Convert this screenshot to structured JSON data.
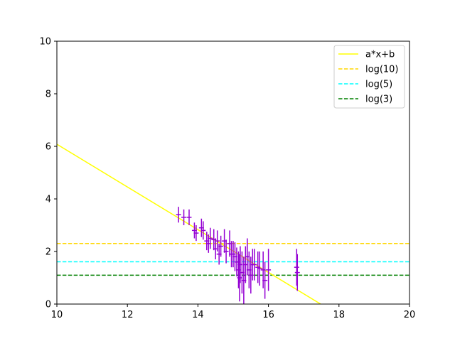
{
  "chart_data": {
    "type": "scatter",
    "title": "",
    "xlabel": "",
    "ylabel": "",
    "xlim": [
      10,
      20
    ],
    "ylim": [
      0,
      10
    ],
    "grid": false,
    "legend_position": "top-right",
    "xticks": [
      "10",
      "12",
      "14",
      "16",
      "18",
      "20"
    ],
    "yticks": [
      "0",
      "2",
      "4",
      "6",
      "8",
      "10"
    ],
    "fit_line": {
      "name": "a*x+b",
      "color": "#ffff00",
      "style": "solid",
      "points": [
        [
          10,
          6.08
        ],
        [
          17.48,
          0
        ]
      ]
    },
    "hlines": [
      {
        "name": "log(10)",
        "y": 2.303,
        "color": "#ffd700",
        "style": "dashed"
      },
      {
        "name": "log(5)",
        "y": 1.609,
        "color": "#00ffff",
        "style": "dashed"
      },
      {
        "name": "log(3)",
        "y": 1.099,
        "color": "#008000",
        "style": "dashed"
      }
    ],
    "errorbar_series": {
      "color": "#9400d3",
      "points": [
        {
          "x": 13.45,
          "y": 3.4,
          "xerr": 0.07,
          "yerr": 0.3
        },
        {
          "x": 13.6,
          "y": 3.3,
          "xerr": 0.07,
          "yerr": 0.3
        },
        {
          "x": 13.75,
          "y": 3.3,
          "xerr": 0.07,
          "yerr": 0.3
        },
        {
          "x": 13.9,
          "y": 2.8,
          "xerr": 0.07,
          "yerr": 0.3
        },
        {
          "x": 13.95,
          "y": 2.7,
          "xerr": 0.07,
          "yerr": 0.3
        },
        {
          "x": 14.1,
          "y": 2.9,
          "xerr": 0.07,
          "yerr": 0.35
        },
        {
          "x": 14.15,
          "y": 2.8,
          "xerr": 0.07,
          "yerr": 0.35
        },
        {
          "x": 14.25,
          "y": 2.4,
          "xerr": 0.07,
          "yerr": 0.35
        },
        {
          "x": 14.3,
          "y": 2.3,
          "xerr": 0.07,
          "yerr": 0.35
        },
        {
          "x": 14.35,
          "y": 2.5,
          "xerr": 0.07,
          "yerr": 0.4
        },
        {
          "x": 14.45,
          "y": 2.45,
          "xerr": 0.07,
          "yerr": 0.4
        },
        {
          "x": 14.5,
          "y": 2.1,
          "xerr": 0.07,
          "yerr": 0.4
        },
        {
          "x": 14.55,
          "y": 2.4,
          "xerr": 0.07,
          "yerr": 0.4
        },
        {
          "x": 14.6,
          "y": 1.9,
          "xerr": 0.07,
          "yerr": 0.4
        },
        {
          "x": 14.65,
          "y": 2.2,
          "xerr": 0.07,
          "yerr": 0.4
        },
        {
          "x": 14.75,
          "y": 2.4,
          "xerr": 0.07,
          "yerr": 0.45
        },
        {
          "x": 14.8,
          "y": 2.0,
          "xerr": 0.07,
          "yerr": 0.45
        },
        {
          "x": 14.9,
          "y": 2.3,
          "xerr": 0.07,
          "yerr": 0.5
        },
        {
          "x": 14.95,
          "y": 1.9,
          "xerr": 0.07,
          "yerr": 0.5
        },
        {
          "x": 15.0,
          "y": 1.9,
          "xerr": 0.07,
          "yerr": 0.5
        },
        {
          "x": 15.05,
          "y": 1.8,
          "xerr": 0.07,
          "yerr": 0.55
        },
        {
          "x": 15.1,
          "y": 1.6,
          "xerr": 0.07,
          "yerr": 0.55
        },
        {
          "x": 15.15,
          "y": 1.3,
          "xerr": 0.07,
          "yerr": 0.7
        },
        {
          "x": 15.18,
          "y": 1.0,
          "xerr": 0.07,
          "yerr": 0.9
        },
        {
          "x": 15.2,
          "y": 1.5,
          "xerr": 0.07,
          "yerr": 0.7
        },
        {
          "x": 15.25,
          "y": 1.2,
          "xerr": 0.07,
          "yerr": 0.8
        },
        {
          "x": 15.3,
          "y": 0.9,
          "xerr": 0.07,
          "yerr": 0.9
        },
        {
          "x": 15.35,
          "y": 1.5,
          "xerr": 0.07,
          "yerr": 0.7
        },
        {
          "x": 15.4,
          "y": 1.8,
          "xerr": 0.07,
          "yerr": 0.7
        },
        {
          "x": 15.45,
          "y": 1.3,
          "xerr": 0.07,
          "yerr": 0.7
        },
        {
          "x": 15.5,
          "y": 1.1,
          "xerr": 0.07,
          "yerr": 0.7
        },
        {
          "x": 15.55,
          "y": 1.5,
          "xerr": 0.07,
          "yerr": 0.6
        },
        {
          "x": 15.6,
          "y": 1.5,
          "xerr": 0.07,
          "yerr": 0.6
        },
        {
          "x": 15.7,
          "y": 1.4,
          "xerr": 0.07,
          "yerr": 0.6
        },
        {
          "x": 15.75,
          "y": 1.35,
          "xerr": 0.07,
          "yerr": 0.65
        },
        {
          "x": 15.85,
          "y": 1.3,
          "xerr": 0.07,
          "yerr": 0.7
        },
        {
          "x": 15.9,
          "y": 0.9,
          "xerr": 0.07,
          "yerr": 0.7
        },
        {
          "x": 16.0,
          "y": 1.3,
          "xerr": 0.07,
          "yerr": 0.8
        },
        {
          "x": 16.8,
          "y": 1.4,
          "xerr": 0.07,
          "yerr": 0.7
        },
        {
          "x": 16.82,
          "y": 1.2,
          "xerr": 0.07,
          "yerr": 0.7
        }
      ]
    },
    "legend": [
      {
        "label": "a*x+b",
        "color": "#ffff00",
        "style": "solid"
      },
      {
        "label": "log(10)",
        "color": "#ffd700",
        "style": "dashed"
      },
      {
        "label": "log(5)",
        "color": "#00ffff",
        "style": "dashed"
      },
      {
        "label": "log(3)",
        "color": "#008000",
        "style": "dashed"
      }
    ]
  }
}
